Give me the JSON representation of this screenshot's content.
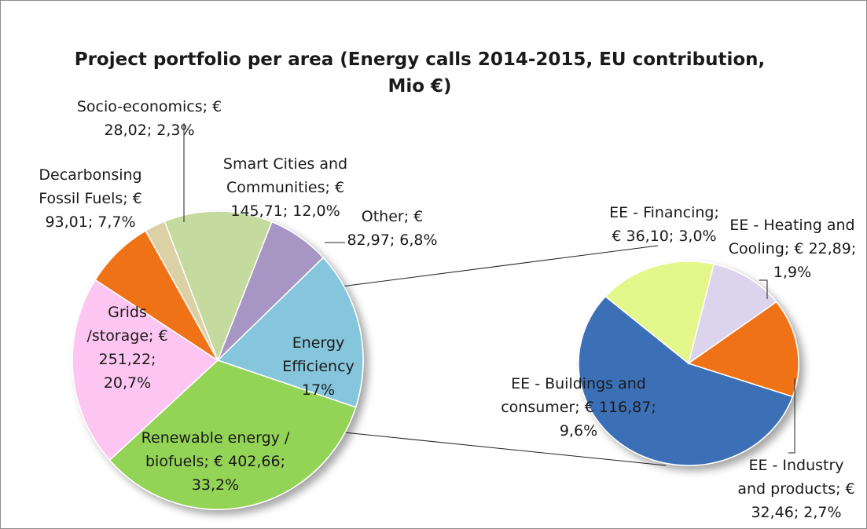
{
  "chart_data": {
    "type": "pie",
    "title_lines": [
      "Project portfolio per area (Energy calls 2014-2015, EU contribution,",
      "Mio €)"
    ],
    "main_pie": [
      {
        "category": "Energy Efficiency",
        "value": 208.32,
        "percent": "17%",
        "label": [
          "Energy",
          "Efficiency",
          "17%"
        ],
        "color": "#86c6dc"
      },
      {
        "category": "Renewable energy / biofuels",
        "value": 402.66,
        "percent": "33,2%",
        "label": [
          "Renewable energy /",
          "biofuels; € 402,66;",
          "33,2%"
        ],
        "color": "#93d456"
      },
      {
        "category": "Grids /storage",
        "value": 251.22,
        "percent": "20,7%",
        "label": [
          "Grids",
          "/storage; €",
          "251,22;",
          "20,7%"
        ],
        "color": "#fdc6f2"
      },
      {
        "category": "Decarbonsing Fossil Fuels",
        "value": 93.01,
        "percent": "7,7%",
        "label": [
          "Decarbonsing",
          "Fossil Fuels; €",
          "93,01; 7,7%"
        ],
        "color": "#ef7318"
      },
      {
        "category": "Socio-economics",
        "value": 28.02,
        "percent": "2,3%",
        "label": [
          "Socio-economics; €",
          "28,02; 2,3%"
        ],
        "color": "#dcd1a5"
      },
      {
        "category": "Smart Cities and Communities",
        "value": 145.71,
        "percent": "12,0%",
        "label": [
          "Smart Cities and",
          "Communities; €",
          "145,71; 12,0%"
        ],
        "color": "#c4da9e"
      },
      {
        "category": "Other",
        "value": 82.97,
        "percent": "6,8%",
        "label": [
          "Other; €",
          "82,97; 6,8%"
        ],
        "color": "#a796c4"
      }
    ],
    "breakout_of": "Energy Efficiency",
    "secondary_pie": [
      {
        "category": "EE - Buildings and consumer",
        "value": 116.87,
        "percent": "9,6%",
        "label": [
          "EE - Buildings and",
          "consumer; € 116,87;",
          "9,6%"
        ],
        "color": "#3b6fb6"
      },
      {
        "category": "EE - Financing",
        "value": 36.1,
        "percent": "3,0%",
        "label": [
          "EE - Financing;",
          "€ 36,10; 3,0%"
        ],
        "color": "#e3f78b"
      },
      {
        "category": "EE - Heating and Cooling",
        "value": 22.89,
        "percent": "1,9%",
        "label": [
          "EE - Heating and",
          "Cooling; € 22,89;",
          "1,9%"
        ],
        "color": "#dcd4ec"
      },
      {
        "category": "EE - Industry and products",
        "value": 32.46,
        "percent": "2,7%",
        "label": [
          "EE - Industry",
          "and products; €",
          "32,46; 2,7%"
        ],
        "color": "#ef7318"
      }
    ],
    "currency": "€",
    "legend": "none"
  }
}
